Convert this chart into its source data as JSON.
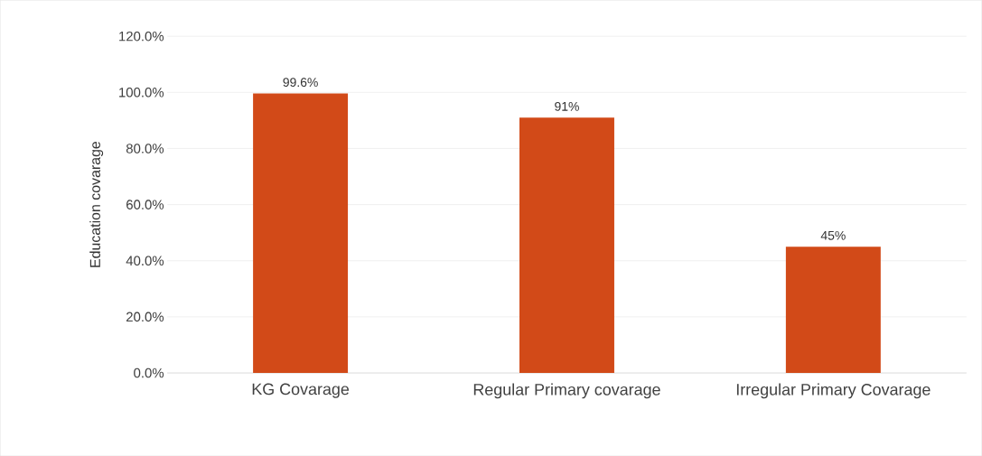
{
  "chart_data": {
    "type": "bar",
    "ylabel": "Education covarage",
    "categories": [
      "KG Covarage",
      "Regular Primary covarage",
      "Irregular Primary Covarage"
    ],
    "values": [
      99.6,
      91,
      45
    ],
    "value_labels": [
      "99.6%",
      "91%",
      "45%"
    ],
    "color": "#d24a18",
    "ylim": [
      0,
      120
    ],
    "yticks": [
      {
        "value": 0,
        "label": "0.0%"
      },
      {
        "value": 20,
        "label": "20.0%"
      },
      {
        "value": 40,
        "label": "40.0%"
      },
      {
        "value": 60,
        "label": "60.0%"
      },
      {
        "value": 80,
        "label": "80.0%"
      },
      {
        "value": 100,
        "label": "100.0%"
      },
      {
        "value": 120,
        "label": "120.0%"
      }
    ],
    "grid": "y"
  }
}
